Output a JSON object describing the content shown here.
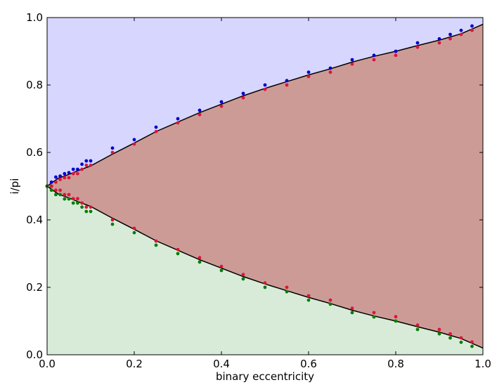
{
  "chart_data": {
    "type": "scatter",
    "title": "",
    "xlabel": "binary eccentricity",
    "ylabel": "i/pi",
    "xlim": [
      0.0,
      1.0
    ],
    "ylim": [
      0.0,
      1.0
    ],
    "grid": false,
    "x_ticks": [
      "0.0",
      "0.2",
      "0.4",
      "0.6",
      "0.8",
      "1.0"
    ],
    "y_ticks": [
      "0.0",
      "0.2",
      "0.4",
      "0.6",
      "0.8",
      "1.0"
    ],
    "colors": {
      "upper_region": "#d6d6ff",
      "middle_region": "#cd9b95",
      "lower_region": "#d8ebd8",
      "boundary_curve": "#000000",
      "blue_points": "#0000cc",
      "red_points": "#dc143c",
      "green_points": "#007f00"
    },
    "series": [
      {
        "color": "#0000cc",
        "x": [
          0.01,
          0.02,
          0.03,
          0.04,
          0.05,
          0.06,
          0.07,
          0.08,
          0.09,
          0.1,
          0.15,
          0.2,
          0.25,
          0.3,
          0.35,
          0.4,
          0.45,
          0.5,
          0.55,
          0.6,
          0.65,
          0.7,
          0.75,
          0.8,
          0.85,
          0.9,
          0.925,
          0.95,
          0.975
        ],
        "y": [
          0.512,
          0.527,
          0.53,
          0.537,
          0.54,
          0.55,
          0.55,
          0.565,
          0.575,
          0.575,
          0.613,
          0.638,
          0.675,
          0.7,
          0.725,
          0.75,
          0.775,
          0.8,
          0.813,
          0.838,
          0.85,
          0.875,
          0.888,
          0.9,
          0.925,
          0.937,
          0.95,
          0.962,
          0.975
        ]
      },
      {
        "color": "#dc143c",
        "x": [
          0.0,
          0.01,
          0.02,
          0.03,
          0.04,
          0.05,
          0.06,
          0.07,
          0.08,
          0.09,
          0.1,
          0.15,
          0.2,
          0.25,
          0.3,
          0.35,
          0.4,
          0.45,
          0.5,
          0.55,
          0.6,
          0.65,
          0.7,
          0.75,
          0.8,
          0.85,
          0.9,
          0.925,
          0.95,
          0.975,
          0.0,
          0.01,
          0.02,
          0.03,
          0.04,
          0.05,
          0.06,
          0.07,
          0.08,
          0.09,
          0.1,
          0.15,
          0.2,
          0.25,
          0.3,
          0.35,
          0.4,
          0.45,
          0.5,
          0.55,
          0.6,
          0.65,
          0.7,
          0.75,
          0.8,
          0.85,
          0.9,
          0.925,
          0.95,
          0.975
        ],
        "y": [
          0.5,
          0.5,
          0.512,
          0.52,
          0.525,
          0.525,
          0.537,
          0.537,
          0.55,
          0.562,
          0.562,
          0.6,
          0.625,
          0.662,
          0.688,
          0.712,
          0.737,
          0.762,
          0.787,
          0.8,
          0.825,
          0.838,
          0.862,
          0.875,
          0.888,
          0.912,
          0.925,
          0.937,
          0.95,
          0.962,
          0.5,
          0.5,
          0.488,
          0.488,
          0.475,
          0.475,
          0.463,
          0.463,
          0.45,
          0.438,
          0.438,
          0.4,
          0.375,
          0.337,
          0.312,
          0.288,
          0.262,
          0.238,
          0.213,
          0.2,
          0.175,
          0.162,
          0.138,
          0.125,
          0.113,
          0.088,
          0.075,
          0.062,
          0.05,
          0.038
        ]
      },
      {
        "color": "#007f00",
        "x": [
          0.0,
          0.01,
          0.02,
          0.03,
          0.04,
          0.05,
          0.06,
          0.07,
          0.08,
          0.09,
          0.1,
          0.15,
          0.2,
          0.25,
          0.3,
          0.35,
          0.4,
          0.45,
          0.5,
          0.55,
          0.6,
          0.65,
          0.7,
          0.75,
          0.8,
          0.85,
          0.9,
          0.925,
          0.95,
          0.975
        ],
        "y": [
          0.5,
          0.488,
          0.475,
          0.475,
          0.462,
          0.462,
          0.45,
          0.45,
          0.438,
          0.425,
          0.425,
          0.387,
          0.362,
          0.325,
          0.3,
          0.275,
          0.25,
          0.225,
          0.2,
          0.187,
          0.162,
          0.15,
          0.125,
          0.112,
          0.1,
          0.075,
          0.062,
          0.05,
          0.037,
          0.025
        ]
      }
    ],
    "boundary_curves": [
      {
        "x": [
          0,
          0.025,
          0.05,
          0.075,
          0.1,
          0.15,
          0.2,
          0.25,
          0.3,
          0.35,
          0.4,
          0.45,
          0.5,
          0.55,
          0.6,
          0.65,
          0.7,
          0.75,
          0.8,
          0.85,
          0.9,
          0.95,
          1.0
        ],
        "y": [
          0.5,
          0.523,
          0.535,
          0.548,
          0.56,
          0.595,
          0.628,
          0.662,
          0.69,
          0.718,
          0.743,
          0.768,
          0.79,
          0.81,
          0.83,
          0.848,
          0.868,
          0.885,
          0.9,
          0.917,
          0.933,
          0.952,
          0.98
        ]
      },
      {
        "x": [
          0,
          0.025,
          0.05,
          0.075,
          0.1,
          0.15,
          0.2,
          0.25,
          0.3,
          0.35,
          0.4,
          0.45,
          0.5,
          0.55,
          0.6,
          0.65,
          0.7,
          0.75,
          0.8,
          0.85,
          0.9,
          0.95,
          1.0
        ],
        "y": [
          0.5,
          0.477,
          0.465,
          0.452,
          0.44,
          0.405,
          0.372,
          0.338,
          0.31,
          0.282,
          0.257,
          0.232,
          0.21,
          0.19,
          0.17,
          0.152,
          0.132,
          0.115,
          0.1,
          0.083,
          0.067,
          0.048,
          0.02
        ]
      }
    ]
  }
}
